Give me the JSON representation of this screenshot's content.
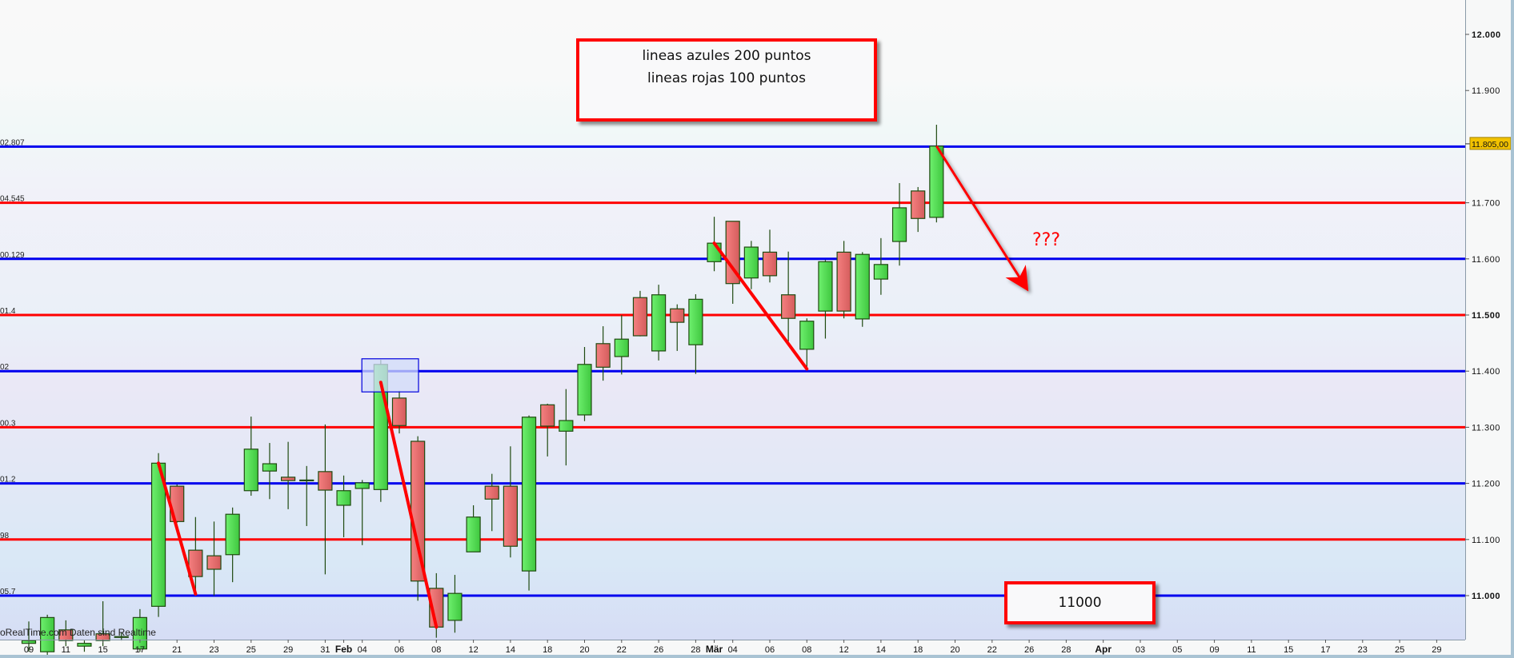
{
  "chart_data": {
    "type": "candlestick",
    "ylim": [
      10925,
      12060
    ],
    "y_ticks": [
      {
        "value": 12000,
        "label": "12.000",
        "bold": true
      },
      {
        "value": 11900,
        "label": "11.900",
        "bold": false
      },
      {
        "value": 11700,
        "label": "11.700",
        "bold": false
      },
      {
        "value": 11600,
        "label": "11.600",
        "bold": false
      },
      {
        "value": 11500,
        "label": "11.500",
        "bold": true
      },
      {
        "value": 11400,
        "label": "11.400",
        "bold": false
      },
      {
        "value": 11300,
        "label": "11.300",
        "bold": false
      },
      {
        "value": 11200,
        "label": "11.200",
        "bold": false
      },
      {
        "value": 11100,
        "label": "11.100",
        "bold": false
      },
      {
        "value": 11000,
        "label": "11.000",
        "bold": true
      }
    ],
    "last_price": {
      "value": 11805,
      "label": "11.805,00",
      "color": "#f2c200"
    },
    "x_tick_labels": [
      "09",
      "11",
      "15",
      "17",
      "21",
      "23",
      "25",
      "29",
      "31",
      "Feb",
      "04",
      "06",
      "08",
      "12",
      "14",
      "18",
      "20",
      "22",
      "26",
      "28",
      "Mär",
      "04",
      "06",
      "08",
      "12",
      "14",
      "18",
      "20",
      "22",
      "26",
      "28",
      "Apr",
      "03",
      "05",
      "09",
      "11",
      "15",
      "17",
      "23",
      "25",
      "29"
    ],
    "candles": [
      {
        "date": "01-09",
        "o": 10915,
        "h": 10954,
        "l": 10900,
        "c": 10920
      },
      {
        "date": "01-10",
        "o": 10900,
        "h": 10966,
        "l": 10890,
        "c": 10961
      },
      {
        "date": "01-11",
        "o": 10939,
        "h": 10956,
        "l": 10910,
        "c": 10920
      },
      {
        "date": "01-14",
        "o": 10910,
        "h": 10920,
        "l": 10900,
        "c": 10915
      },
      {
        "date": "01-15",
        "o": 10932,
        "h": 10990,
        "l": 10910,
        "c": 10920
      },
      {
        "date": "01-16",
        "o": 10927,
        "h": 10934,
        "l": 10920,
        "c": 10926
      },
      {
        "date": "01-17",
        "o": 10905,
        "h": 10976,
        "l": 10900,
        "c": 10961
      },
      {
        "date": "01-18",
        "o": 10981,
        "h": 11254,
        "l": 10962,
        "c": 11236
      },
      {
        "date": "01-21",
        "o": 11195,
        "h": 11198,
        "l": 11130,
        "c": 11132
      },
      {
        "date": "01-22",
        "o": 11081,
        "h": 11140,
        "l": 11003,
        "c": 11034
      },
      {
        "date": "01-23",
        "o": 11071,
        "h": 11132,
        "l": 11000,
        "c": 11047
      },
      {
        "date": "01-24",
        "o": 11073,
        "h": 11157,
        "l": 11024,
        "c": 11145
      },
      {
        "date": "01-25",
        "o": 11187,
        "h": 11319,
        "l": 11178,
        "c": 11261
      },
      {
        "date": "01-28",
        "o": 11222,
        "h": 11272,
        "l": 11172,
        "c": 11235
      },
      {
        "date": "01-29",
        "o": 11211,
        "h": 11274,
        "l": 11154,
        "c": 11205
      },
      {
        "date": "01-30",
        "o": 11205,
        "h": 11231,
        "l": 11124,
        "c": 11206
      },
      {
        "date": "01-31",
        "o": 11221,
        "h": 11305,
        "l": 11038,
        "c": 11188
      },
      {
        "date": "02-01",
        "o": 11161,
        "h": 11214,
        "l": 11104,
        "c": 11187
      },
      {
        "date": "02-04",
        "o": 11191,
        "h": 11206,
        "l": 11090,
        "c": 11201
      },
      {
        "date": "02-05",
        "o": 11189,
        "h": 11420,
        "l": 11167,
        "c": 11412
      },
      {
        "date": "02-06",
        "o": 11352,
        "h": 11365,
        "l": 11289,
        "c": 11303
      },
      {
        "date": "02-07",
        "o": 11275,
        "h": 11284,
        "l": 10991,
        "c": 11026
      },
      {
        "date": "02-08",
        "o": 11013,
        "h": 11040,
        "l": 10925,
        "c": 10944
      },
      {
        "date": "02-11",
        "o": 10956,
        "h": 11037,
        "l": 10934,
        "c": 11004
      },
      {
        "date": "02-12",
        "o": 11078,
        "h": 11161,
        "l": 11078,
        "c": 11140
      },
      {
        "date": "02-13",
        "o": 11195,
        "h": 11217,
        "l": 11115,
        "c": 11172
      },
      {
        "date": "02-14",
        "o": 11195,
        "h": 11266,
        "l": 11068,
        "c": 11088
      },
      {
        "date": "02-15",
        "o": 11044,
        "h": 11321,
        "l": 11009,
        "c": 11318
      },
      {
        "date": "02-18",
        "o": 11340,
        "h": 11342,
        "l": 11248,
        "c": 11302
      },
      {
        "date": "02-19",
        "o": 11293,
        "h": 11368,
        "l": 11232,
        "c": 11312
      },
      {
        "date": "02-20",
        "o": 11322,
        "h": 11443,
        "l": 11311,
        "c": 11412
      },
      {
        "date": "02-21",
        "o": 11449,
        "h": 11480,
        "l": 11383,
        "c": 11407
      },
      {
        "date": "02-22",
        "o": 11426,
        "h": 11500,
        "l": 11394,
        "c": 11457
      },
      {
        "date": "02-25",
        "o": 11531,
        "h": 11543,
        "l": 11462,
        "c": 11463
      },
      {
        "date": "02-26",
        "o": 11436,
        "h": 11554,
        "l": 11419,
        "c": 11536
      },
      {
        "date": "02-27",
        "o": 11511,
        "h": 11519,
        "l": 11436,
        "c": 11487
      },
      {
        "date": "02-28",
        "o": 11447,
        "h": 11537,
        "l": 11395,
        "c": 11528
      },
      {
        "date": "03-01",
        "o": 11595,
        "h": 11675,
        "l": 11578,
        "c": 11628
      },
      {
        "date": "03-04",
        "o": 11667,
        "h": 11667,
        "l": 11520,
        "c": 11556
      },
      {
        "date": "03-05",
        "o": 11566,
        "h": 11632,
        "l": 11546,
        "c": 11621
      },
      {
        "date": "03-06",
        "o": 11612,
        "h": 11652,
        "l": 11558,
        "c": 11570
      },
      {
        "date": "03-07",
        "o": 11536,
        "h": 11613,
        "l": 11453,
        "c": 11494
      },
      {
        "date": "03-08",
        "o": 11439,
        "h": 11494,
        "l": 11404,
        "c": 11489
      },
      {
        "date": "03-11",
        "o": 11507,
        "h": 11598,
        "l": 11458,
        "c": 11595
      },
      {
        "date": "03-12",
        "o": 11612,
        "h": 11632,
        "l": 11494,
        "c": 11507
      },
      {
        "date": "03-13",
        "o": 11493,
        "h": 11612,
        "l": 11479,
        "c": 11608
      },
      {
        "date": "03-14",
        "o": 11564,
        "h": 11637,
        "l": 11536,
        "c": 11590
      },
      {
        "date": "03-15",
        "o": 11631,
        "h": 11735,
        "l": 11588,
        "c": 11691
      },
      {
        "date": "03-18",
        "o": 11721,
        "h": 11728,
        "l": 11648,
        "c": 11672
      },
      {
        "date": "03-19",
        "o": 11674,
        "h": 11839,
        "l": 11665,
        "c": 11801
      }
    ],
    "horizontal_lines": [
      {
        "value": 11800,
        "color": "#0000ee",
        "label": "02.807"
      },
      {
        "value": 11700,
        "color": "#ff0000",
        "label": "04.545"
      },
      {
        "value": 11600,
        "color": "#0000ee",
        "label": "00.129"
      },
      {
        "value": 11500,
        "color": "#ff0000",
        "label": "01.4"
      },
      {
        "value": 11400,
        "color": "#0000ee",
        "label": "02"
      },
      {
        "value": 11300,
        "color": "#ff0000",
        "label": "00.3"
      },
      {
        "value": 11200,
        "color": "#0000ee",
        "label": "01.2"
      },
      {
        "value": 11100,
        "color": "#ff0000",
        "label": "98"
      },
      {
        "value": 11000,
        "color": "#0000ee",
        "label": "05.7"
      }
    ],
    "trend_lines": [
      {
        "from": {
          "date": "01-18",
          "value": 11236
        },
        "to": {
          "date": "01-22",
          "value": 11003
        },
        "color": "#ff0000"
      },
      {
        "from": {
          "date": "02-05",
          "value": 11380
        },
        "to": {
          "date": "02-08",
          "value": 10944
        },
        "color": "#ff0000"
      },
      {
        "from": {
          "date": "03-01",
          "value": 11628
        },
        "to": {
          "date": "03-08",
          "value": 11404
        },
        "color": "#ff0000"
      }
    ],
    "arrow": {
      "from": {
        "date": "03-19",
        "value": 11801
      },
      "to": {
        "date": "03-24",
        "value": 11555
      },
      "color": "#ff0000",
      "label": "???"
    },
    "highlight_box": {
      "from_date": "02-04",
      "to_date": "02-06",
      "top": 11422,
      "bottom": 11363,
      "color": "#0000dd"
    },
    "colors": {
      "up": "#4cd94c",
      "down": "#e66a6a",
      "outline": "#1f4a10"
    },
    "watermark": "oRealTime.com  Daten sind Realtime"
  },
  "notes": {
    "top_lines": [
      "lineas azules 200 puntos",
      "lineas rojas 100 puntos"
    ],
    "bottom": "11000"
  }
}
